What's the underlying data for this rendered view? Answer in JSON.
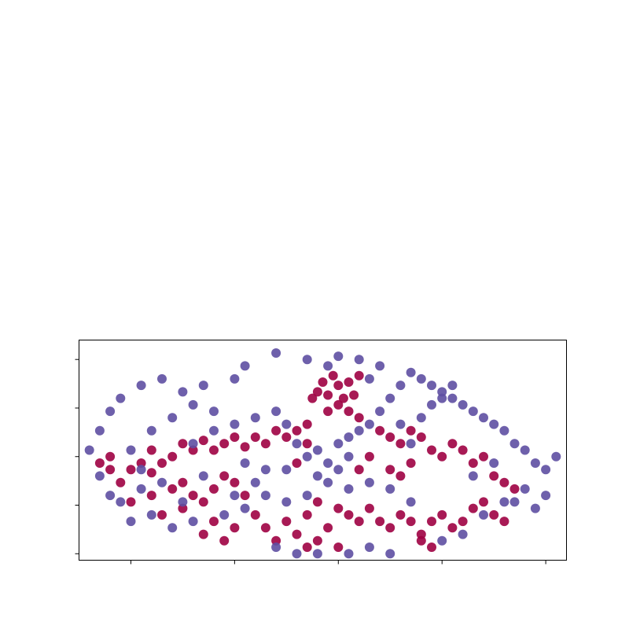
{
  "chart_data": {
    "type": "scatter",
    "title": "",
    "xlabel": "",
    "ylabel": "",
    "xlim": [
      -50,
      44
    ],
    "ylim": [
      -32,
      36
    ],
    "x_ticks": [
      -40,
      -20,
      0,
      20,
      40
    ],
    "y_ticks": [
      -30,
      -15,
      0,
      15,
      30
    ],
    "tick_labels_shown": false,
    "grid": false,
    "legend": "none",
    "colors": {
      "class_a": "#9e0142",
      "class_b": "#5e4fa2"
    },
    "series": [
      {
        "color": "#9e0142",
        "points": [
          [
            -4,
            20
          ],
          [
            -2,
            19
          ],
          [
            0,
            22
          ],
          [
            2,
            23
          ],
          [
            4,
            25
          ],
          [
            -1,
            25
          ],
          [
            -3,
            23
          ],
          [
            1,
            18
          ],
          [
            3,
            19
          ],
          [
            -5,
            18
          ],
          [
            0,
            16
          ],
          [
            -2,
            14
          ],
          [
            2,
            14
          ],
          [
            4,
            12
          ],
          [
            -6,
            10
          ],
          [
            -8,
            8
          ],
          [
            -10,
            6
          ],
          [
            -12,
            8
          ],
          [
            -14,
            4
          ],
          [
            -16,
            6
          ],
          [
            -18,
            3
          ],
          [
            -20,
            6
          ],
          [
            -22,
            4
          ],
          [
            -24,
            2
          ],
          [
            -26,
            5
          ],
          [
            -28,
            2
          ],
          [
            -30,
            4
          ],
          [
            -32,
            0
          ],
          [
            -34,
            -2
          ],
          [
            -36,
            -5
          ],
          [
            -38,
            -2
          ],
          [
            -40,
            -4
          ],
          [
            -42,
            -8
          ],
          [
            -44,
            -4
          ],
          [
            -46,
            -2
          ],
          [
            -40,
            -14
          ],
          [
            -36,
            -12
          ],
          [
            -32,
            -10
          ],
          [
            -30,
            -8
          ],
          [
            -28,
            -12
          ],
          [
            -26,
            -14
          ],
          [
            -24,
            -10
          ],
          [
            -22,
            -6
          ],
          [
            -20,
            -8
          ],
          [
            -18,
            -12
          ],
          [
            -16,
            -18
          ],
          [
            -14,
            -22
          ],
          [
            -12,
            -26
          ],
          [
            -10,
            -20
          ],
          [
            -8,
            -24
          ],
          [
            -6,
            -18
          ],
          [
            -4,
            -14
          ],
          [
            -2,
            -22
          ],
          [
            0,
            -16
          ],
          [
            2,
            -18
          ],
          [
            4,
            -20
          ],
          [
            6,
            -16
          ],
          [
            8,
            -20
          ],
          [
            10,
            -22
          ],
          [
            12,
            -18
          ],
          [
            14,
            -20
          ],
          [
            16,
            -24
          ],
          [
            18,
            -20
          ],
          [
            20,
            -18
          ],
          [
            22,
            -22
          ],
          [
            24,
            -20
          ],
          [
            26,
            -16
          ],
          [
            28,
            -14
          ],
          [
            30,
            -18
          ],
          [
            32,
            -20
          ],
          [
            8,
            8
          ],
          [
            10,
            6
          ],
          [
            12,
            4
          ],
          [
            14,
            8
          ],
          [
            16,
            6
          ],
          [
            18,
            2
          ],
          [
            20,
            0
          ],
          [
            22,
            4
          ],
          [
            24,
            2
          ],
          [
            26,
            -2
          ],
          [
            28,
            0
          ],
          [
            30,
            -6
          ],
          [
            32,
            -8
          ],
          [
            34,
            -10
          ],
          [
            10,
            -4
          ],
          [
            12,
            -6
          ],
          [
            14,
            -2
          ],
          [
            -24,
            -20
          ],
          [
            -26,
            -24
          ],
          [
            -22,
            -26
          ],
          [
            -20,
            -22
          ],
          [
            -4,
            -26
          ],
          [
            -6,
            -28
          ],
          [
            0,
            -28
          ],
          [
            16,
            -26
          ],
          [
            18,
            -28
          ],
          [
            -36,
            2
          ],
          [
            -44,
            0
          ],
          [
            -6,
            4
          ],
          [
            -8,
            -2
          ],
          [
            6,
            0
          ],
          [
            4,
            -4
          ],
          [
            -34,
            -18
          ],
          [
            -30,
            -16
          ]
        ]
      },
      {
        "color": "#5e4fa2",
        "points": [
          [
            -12,
            32
          ],
          [
            -6,
            30
          ],
          [
            0,
            31
          ],
          [
            4,
            30
          ],
          [
            -18,
            28
          ],
          [
            -20,
            24
          ],
          [
            -26,
            22
          ],
          [
            -30,
            20
          ],
          [
            -34,
            24
          ],
          [
            -38,
            22
          ],
          [
            -42,
            18
          ],
          [
            -44,
            14
          ],
          [
            -46,
            8
          ],
          [
            -48,
            2
          ],
          [
            -46,
            -6
          ],
          [
            -44,
            -12
          ],
          [
            -40,
            -20
          ],
          [
            -36,
            -18
          ],
          [
            -32,
            -22
          ],
          [
            -28,
            -20
          ],
          [
            -30,
            -14
          ],
          [
            -34,
            -8
          ],
          [
            -38,
            -4
          ],
          [
            -40,
            2
          ],
          [
            -36,
            8
          ],
          [
            -32,
            12
          ],
          [
            -28,
            16
          ],
          [
            -24,
            14
          ],
          [
            -20,
            10
          ],
          [
            -16,
            12
          ],
          [
            -12,
            14
          ],
          [
            -10,
            10
          ],
          [
            -8,
            4
          ],
          [
            -6,
            0
          ],
          [
            -4,
            2
          ],
          [
            -2,
            -2
          ],
          [
            0,
            4
          ],
          [
            2,
            6
          ],
          [
            4,
            8
          ],
          [
            6,
            10
          ],
          [
            8,
            14
          ],
          [
            10,
            18
          ],
          [
            12,
            22
          ],
          [
            14,
            26
          ],
          [
            16,
            24
          ],
          [
            18,
            22
          ],
          [
            20,
            20
          ],
          [
            22,
            18
          ],
          [
            24,
            16
          ],
          [
            26,
            14
          ],
          [
            28,
            12
          ],
          [
            30,
            10
          ],
          [
            32,
            8
          ],
          [
            34,
            4
          ],
          [
            36,
            2
          ],
          [
            38,
            -2
          ],
          [
            40,
            -4
          ],
          [
            42,
            0
          ],
          [
            36,
            -10
          ],
          [
            32,
            -14
          ],
          [
            28,
            -18
          ],
          [
            24,
            -24
          ],
          [
            20,
            -26
          ],
          [
            14,
            -14
          ],
          [
            10,
            -10
          ],
          [
            6,
            -8
          ],
          [
            2,
            -10
          ],
          [
            -2,
            -8
          ],
          [
            -6,
            -12
          ],
          [
            -10,
            -14
          ],
          [
            -14,
            -12
          ],
          [
            -18,
            -16
          ],
          [
            -22,
            -18
          ],
          [
            -12,
            -28
          ],
          [
            -8,
            -30
          ],
          [
            -4,
            -30
          ],
          [
            2,
            -30
          ],
          [
            6,
            -28
          ],
          [
            10,
            -30
          ],
          [
            22,
            22
          ],
          [
            20,
            18
          ],
          [
            18,
            16
          ],
          [
            16,
            12
          ],
          [
            12,
            10
          ],
          [
            14,
            4
          ],
          [
            -10,
            -4
          ],
          [
            -14,
            -4
          ],
          [
            -18,
            -2
          ],
          [
            -16,
            -8
          ],
          [
            -20,
            -12
          ],
          [
            -26,
            -6
          ],
          [
            -28,
            4
          ],
          [
            -24,
            8
          ],
          [
            6,
            24
          ],
          [
            8,
            28
          ],
          [
            -2,
            28
          ],
          [
            26,
            -6
          ],
          [
            30,
            -2
          ],
          [
            34,
            -14
          ],
          [
            38,
            -16
          ],
          [
            40,
            -12
          ],
          [
            -42,
            -14
          ],
          [
            -38,
            -10
          ],
          [
            2,
            0
          ],
          [
            0,
            -4
          ],
          [
            -4,
            -6
          ]
        ]
      }
    ]
  }
}
